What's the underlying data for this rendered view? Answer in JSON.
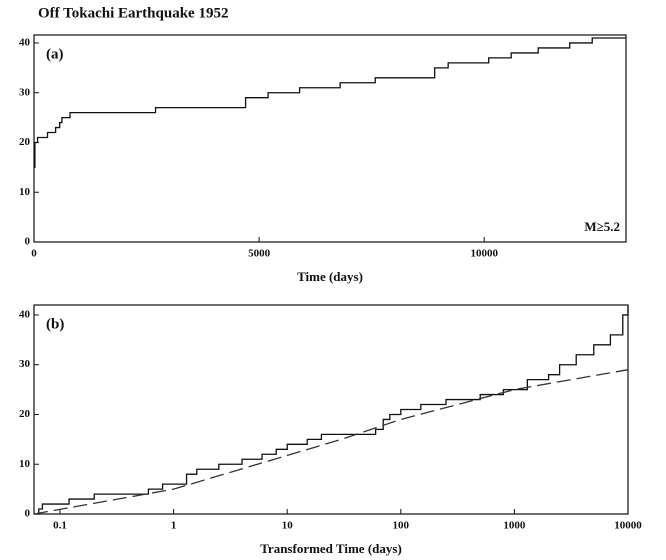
{
  "chart_data": [
    {
      "type": "step",
      "title": "Off Tokachi Earthquake 1952",
      "panel_label": "(a)",
      "annotation": "M≥5.2",
      "xlabel": "Time (days)",
      "xlim": [
        0,
        13150
      ],
      "ylim": [
        0,
        41.6
      ],
      "xticks": [
        0,
        5000,
        10000
      ],
      "yticks": [
        0,
        10,
        20,
        30,
        40
      ],
      "log_x": false,
      "series": [
        {
          "color": "#111111",
          "style": "solid",
          "x": [
            0,
            20,
            80,
            300,
            480,
            570,
            620,
            800,
            2700,
            4700,
            5200,
            5900,
            6800,
            7580,
            8900,
            9200,
            10100,
            10600,
            11200,
            11900,
            12400,
            13150
          ],
          "values": [
            15,
            20,
            21,
            22,
            23,
            24,
            25,
            26,
            27,
            29,
            30,
            31,
            32,
            33,
            35,
            36,
            37,
            38,
            39,
            40,
            41,
            41
          ]
        }
      ]
    },
    {
      "type": "step",
      "panel_label": "(b)",
      "xlabel": "Transformed Time (days)",
      "xlim": [
        0.059,
        10000
      ],
      "ylim": [
        0,
        42
      ],
      "log_x": true,
      "xticks": [
        0.1,
        1,
        10,
        100,
        1000,
        10000
      ],
      "yticks": [
        0,
        10,
        20,
        30,
        40
      ],
      "series": [
        {
          "color": "#111111",
          "style": "solid",
          "x": [
            0.059,
            0.065,
            0.07,
            0.12,
            0.2,
            0.6,
            0.8,
            1.3,
            1.6,
            2.5,
            4,
            6,
            8,
            10,
            15,
            20,
            60,
            70,
            80,
            100,
            150,
            250,
            500,
            800,
            1300,
            2000,
            2500,
            3500,
            5000,
            7000,
            9000,
            10000
          ],
          "values": [
            0,
            1,
            2,
            3,
            4,
            5,
            6,
            8,
            9,
            10,
            11,
            12,
            13,
            14,
            15,
            16,
            17,
            19,
            20,
            21,
            22,
            23,
            24,
            25,
            27,
            28,
            30,
            32,
            34,
            36,
            40,
            42
          ]
        },
        {
          "color": "#333333",
          "style": "dashed",
          "x": [
            0.059,
            1,
            30,
            100,
            1000,
            10000
          ],
          "values": [
            0,
            5,
            15,
            19,
            25,
            29
          ]
        }
      ]
    }
  ]
}
